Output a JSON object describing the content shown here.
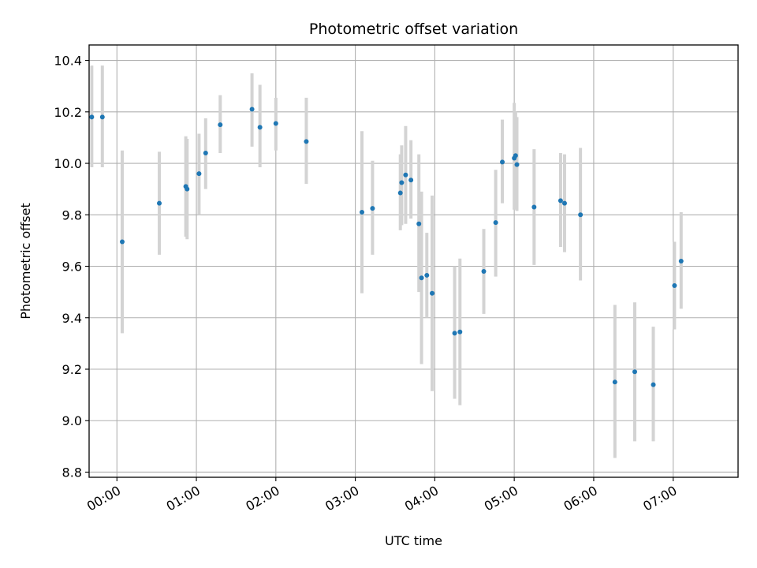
{
  "chart_data": {
    "type": "scatter",
    "title": "Photometric offset variation",
    "xlabel": "UTC time",
    "ylabel": "Photometric offset",
    "x_unit": "UTC time (HH:MM)",
    "xlim": [
      "23:39",
      "07:49"
    ],
    "ylim": [
      8.78,
      10.46
    ],
    "xticks": [
      "00:00",
      "01:00",
      "02:00",
      "03:00",
      "04:00",
      "05:00",
      "06:00",
      "07:00"
    ],
    "yticks": [
      "8.8",
      "9.0",
      "9.2",
      "9.4",
      "9.6",
      "9.8",
      "10.0",
      "10.2",
      "10.4"
    ],
    "grid": true,
    "marker_color": "#1f77b4",
    "errorbar_color": "#d3d3d3",
    "points": [
      {
        "x": "23:41",
        "y": 10.18,
        "yerr_low": 9.985,
        "yerr_high": 10.38
      },
      {
        "x": "23:49",
        "y": 10.18,
        "yerr_low": 9.985,
        "yerr_high": 10.38
      },
      {
        "x": "00:04",
        "y": 9.695,
        "yerr_low": 9.34,
        "yerr_high": 10.05
      },
      {
        "x": "00:32",
        "y": 9.845,
        "yerr_low": 9.645,
        "yerr_high": 10.045
      },
      {
        "x": "00:52",
        "y": 9.91,
        "yerr_low": 9.715,
        "yerr_high": 10.105
      },
      {
        "x": "00:53",
        "y": 9.9,
        "yerr_low": 9.705,
        "yerr_high": 10.095
      },
      {
        "x": "01:02",
        "y": 9.96,
        "yerr_low": 9.8,
        "yerr_high": 10.115
      },
      {
        "x": "01:07",
        "y": 10.04,
        "yerr_low": 9.9,
        "yerr_high": 10.175
      },
      {
        "x": "01:18",
        "y": 10.15,
        "yerr_low": 10.04,
        "yerr_high": 10.265
      },
      {
        "x": "01:42",
        "y": 10.21,
        "yerr_low": 10.065,
        "yerr_high": 10.35
      },
      {
        "x": "01:48",
        "y": 10.14,
        "yerr_low": 9.985,
        "yerr_high": 10.305
      },
      {
        "x": "02:00",
        "y": 10.155,
        "yerr_low": 10.05,
        "yerr_high": 10.255
      },
      {
        "x": "02:23",
        "y": 10.085,
        "yerr_low": 9.92,
        "yerr_high": 10.255
      },
      {
        "x": "03:05",
        "y": 9.81,
        "yerr_low": 9.495,
        "yerr_high": 10.125
      },
      {
        "x": "03:13",
        "y": 9.825,
        "yerr_low": 9.645,
        "yerr_high": 10.01
      },
      {
        "x": "03:34",
        "y": 9.885,
        "yerr_low": 9.74,
        "yerr_high": 10.035
      },
      {
        "x": "03:35",
        "y": 9.925,
        "yerr_low": 9.76,
        "yerr_high": 10.07
      },
      {
        "x": "03:38",
        "y": 9.955,
        "yerr_low": 9.765,
        "yerr_high": 10.145
      },
      {
        "x": "03:42",
        "y": 9.935,
        "yerr_low": 9.785,
        "yerr_high": 10.09
      },
      {
        "x": "03:48",
        "y": 9.765,
        "yerr_low": 9.5,
        "yerr_high": 10.035
      },
      {
        "x": "03:50",
        "y": 9.555,
        "yerr_low": 9.22,
        "yerr_high": 9.89
      },
      {
        "x": "03:54",
        "y": 9.565,
        "yerr_low": 9.4,
        "yerr_high": 9.73
      },
      {
        "x": "03:58",
        "y": 9.495,
        "yerr_low": 9.115,
        "yerr_high": 9.875
      },
      {
        "x": "04:15",
        "y": 9.34,
        "yerr_low": 9.085,
        "yerr_high": 9.6
      },
      {
        "x": "04:19",
        "y": 9.345,
        "yerr_low": 9.06,
        "yerr_high": 9.63
      },
      {
        "x": "04:37",
        "y": 9.58,
        "yerr_low": 9.415,
        "yerr_high": 9.745
      },
      {
        "x": "04:46",
        "y": 9.77,
        "yerr_low": 9.56,
        "yerr_high": 9.975
      },
      {
        "x": "04:51",
        "y": 10.005,
        "yerr_low": 9.845,
        "yerr_high": 10.17
      },
      {
        "x": "05:00",
        "y": 10.02,
        "yerr_low": 9.82,
        "yerr_high": 10.235
      },
      {
        "x": "05:01",
        "y": 10.03,
        "yerr_low": 9.825,
        "yerr_high": 10.2
      },
      {
        "x": "05:02",
        "y": 9.995,
        "yerr_low": 9.815,
        "yerr_high": 10.18
      },
      {
        "x": "05:15",
        "y": 9.83,
        "yerr_low": 9.605,
        "yerr_high": 10.055
      },
      {
        "x": "05:35",
        "y": 9.855,
        "yerr_low": 9.675,
        "yerr_high": 10.04
      },
      {
        "x": "05:38",
        "y": 9.845,
        "yerr_low": 9.655,
        "yerr_high": 10.035
      },
      {
        "x": "05:50",
        "y": 9.8,
        "yerr_low": 9.545,
        "yerr_high": 10.06
      },
      {
        "x": "06:16",
        "y": 9.15,
        "yerr_low": 8.855,
        "yerr_high": 9.45
      },
      {
        "x": "06:31",
        "y": 9.19,
        "yerr_low": 8.92,
        "yerr_high": 9.46
      },
      {
        "x": "06:45",
        "y": 9.14,
        "yerr_low": 8.92,
        "yerr_high": 9.365
      },
      {
        "x": "07:01",
        "y": 9.525,
        "yerr_low": 9.355,
        "yerr_high": 9.695
      },
      {
        "x": "07:06",
        "y": 9.62,
        "yerr_low": 9.435,
        "yerr_high": 9.81
      }
    ]
  }
}
